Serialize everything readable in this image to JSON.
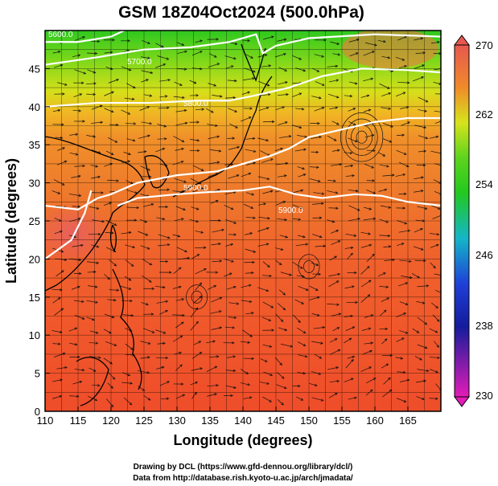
{
  "title": "GSM 18Z04Oct2024 (500.0hPa)",
  "xlabel": "Longitude (degrees)",
  "ylabel": "Latitude (degrees)",
  "x_ticks": [
    "110",
    "115",
    "120",
    "125",
    "130",
    "135",
    "140",
    "145",
    "150",
    "155",
    "160",
    "165"
  ],
  "y_ticks": [
    "0",
    "5",
    "10",
    "15",
    "20",
    "25",
    "30",
    "35",
    "40",
    "45"
  ],
  "colorbar": {
    "labels": [
      "270",
      "262",
      "254",
      "246",
      "238",
      "230"
    ],
    "colors": {
      "top": "#e8584f",
      "orange": "#f08a2a",
      "yellow": "#d7e31b",
      "green": "#22c81e",
      "cyan": "#14b6c8",
      "blue": "#1f3fd8",
      "navy": "#141c9c",
      "magenta": "#e31cb7"
    }
  },
  "contour_labels": [
    "5700.0",
    "5800.0",
    "5600.0",
    "5900.0"
  ],
  "footer": {
    "line1": "Drawing by DCL (https://www.gfd-dennou.org/library/dcl/)",
    "line2": "Data from http://database.rish.kyoto-u.ac.jp/arch/jmadata/"
  },
  "chart_data": {
    "type": "heatmap",
    "field": "500 hPa temperature with streamlines and geopotential height contours",
    "xlim": [
      110,
      170
    ],
    "ylim": [
      0,
      50
    ],
    "color_range": [
      230,
      270
    ],
    "contours": [
      {
        "label": "5600.0",
        "points": [
          [
            110,
            48.5
          ],
          [
            115,
            48.5
          ],
          [
            120,
            49.2
          ],
          [
            122,
            50
          ]
        ]
      },
      {
        "label": "5700.0",
        "points": [
          [
            110,
            45.5
          ],
          [
            118,
            46.5
          ],
          [
            125,
            47.5
          ],
          [
            132,
            47.8
          ],
          [
            138,
            48.5
          ],
          [
            142,
            49.5
          ],
          [
            143,
            47
          ],
          [
            145,
            48
          ],
          [
            150,
            49
          ],
          [
            160,
            49.5
          ],
          [
            170,
            49.2
          ]
        ]
      },
      {
        "label": "5800.0",
        "points": [
          [
            110,
            40
          ],
          [
            118,
            40.5
          ],
          [
            126,
            40.5
          ],
          [
            133,
            40.8
          ],
          [
            138,
            40.8
          ],
          [
            142,
            41.5
          ],
          [
            147,
            42.5
          ],
          [
            152,
            44
          ],
          [
            158,
            45
          ],
          [
            165,
            44.8
          ],
          [
            170,
            44.5
          ]
        ]
      },
      {
        "label": "5900.0",
        "points": [
          [
            110,
            27
          ],
          [
            115,
            26.5
          ],
          [
            118,
            28
          ],
          [
            120,
            28.5
          ],
          [
            124,
            30
          ],
          [
            130,
            31
          ],
          [
            136,
            31.5
          ],
          [
            140,
            32.5
          ],
          [
            144,
            33.5
          ],
          [
            147,
            34.5
          ],
          [
            150,
            36
          ],
          [
            155,
            37
          ],
          [
            160,
            38
          ],
          [
            165,
            38.5
          ],
          [
            170,
            38.5
          ]
        ]
      },
      {
        "label": "5900.0",
        "points": [
          [
            110,
            20
          ],
          [
            114,
            22.5
          ],
          [
            116,
            26
          ],
          [
            117,
            29
          ]
        ]
      },
      {
        "label": "5900.0",
        "points": [
          [
            121,
            27
          ],
          [
            124,
            28
          ],
          [
            130,
            28.5
          ],
          [
            135,
            28.8
          ],
          [
            140,
            29
          ],
          [
            144,
            29.5
          ],
          [
            148,
            28.5
          ],
          [
            152,
            28
          ],
          [
            157,
            28.5
          ],
          [
            161,
            28.3
          ],
          [
            165,
            27.5
          ],
          [
            170,
            27
          ]
        ]
      }
    ]
  }
}
